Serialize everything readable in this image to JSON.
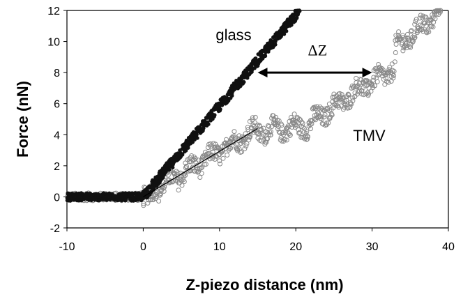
{
  "chart_data": {
    "type": "scatter",
    "xlabel": "Z-piezo distance (nm)",
    "ylabel": "Force (nN)",
    "xlim": [
      -10,
      40
    ],
    "ylim": [
      -2,
      12
    ],
    "xticks": [
      "-10",
      "0",
      "10",
      "20",
      "30",
      "40"
    ],
    "yticks": [
      "-2",
      "0",
      "2",
      "4",
      "6",
      "8",
      "10",
      "12"
    ],
    "grid": false,
    "legend": "none",
    "series": [
      {
        "name": "glass",
        "color": "#111111",
        "marker": "filled-circle",
        "segments": [
          {
            "x_from": -10,
            "x_to": 0,
            "y_from": 0,
            "y_to": 0
          },
          {
            "x_from": 0,
            "x_to": 20.5,
            "y_from": 0,
            "y_to": 12
          }
        ],
        "noise": 0.35
      },
      {
        "name": "TMV",
        "color": "#888888",
        "marker": "open-circle",
        "segments": [
          {
            "x_from": -10,
            "x_to": 0,
            "y_from": 0,
            "y_to": 0
          },
          {
            "x_from": 0,
            "x_to": 15,
            "y_from": 0,
            "y_to": 4.4
          },
          {
            "x_from": 15,
            "x_to": 22,
            "y_from": 4.2,
            "y_to": 4.6
          },
          {
            "x_from": 22,
            "x_to": 30,
            "y_from": 4.8,
            "y_to": 7.5
          },
          {
            "x_from": 30,
            "x_to": 33,
            "y_from": 7.3,
            "y_to": 8.3
          },
          {
            "x_from": 33,
            "x_to": 39,
            "y_from": 9.5,
            "y_to": 12
          }
        ],
        "noise": 0.6
      }
    ],
    "fit_line": {
      "x": [
        0,
        15
      ],
      "y": [
        0,
        4.4
      ],
      "color": "#000000"
    },
    "annotations": [
      {
        "text": "glass",
        "x": 9.5,
        "y": 10.1
      },
      {
        "text": "TMV",
        "x": 27.5,
        "y": 3.6
      },
      {
        "text": "ΔZ",
        "x": 22.5,
        "y": 9.1
      }
    ],
    "arrow": {
      "x_from": 15,
      "x_to": 30,
      "y": 8,
      "label": "ΔZ"
    }
  }
}
